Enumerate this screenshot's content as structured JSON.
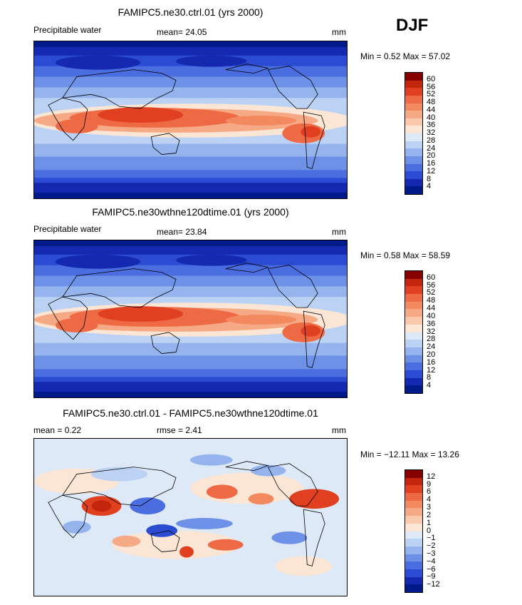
{
  "season": "DJF",
  "panels": [
    {
      "title": "FAMIPC5.ne30.ctrl.01 (yrs 2000)",
      "left_label": "Precipitable water",
      "stat1": "mean=   24.05",
      "unit": "mm",
      "minmax": "Min =    0.52  Max =   57.02"
    },
    {
      "title": "FAMIPC5.ne30wthne120dtime.01 (yrs 2000)",
      "left_label": "Precipitable water",
      "stat1": "mean=   23.84",
      "unit": "mm",
      "minmax": "Min =    0.58  Max =   58.59"
    },
    {
      "title": "FAMIPC5.ne30.ctrl.01 - FAMIPC5.ne30wthne120dtime.01",
      "left_label": "mean =    0.22",
      "stat1": "rmse =    2.41",
      "unit": "mm",
      "minmax": "Min = −12.11  Max =   13.26"
    }
  ],
  "colorbar_abs": {
    "labels": [
      "60",
      "56",
      "52",
      "48",
      "44",
      "40",
      "36",
      "32",
      "28",
      "24",
      "20",
      "16",
      "12",
      "8",
      "4"
    ],
    "colors": [
      "#870000",
      "#c4250d",
      "#e0401f",
      "#ee6a45",
      "#f2895f",
      "#f6a985",
      "#fac9ac",
      "#fbe6d6",
      "#dde9f7",
      "#bcd2f4",
      "#95b4ee",
      "#6d91e6",
      "#4a6ee0",
      "#2b4bd2",
      "#1428b0",
      "#001a8a"
    ]
  },
  "colorbar_diff": {
    "labels": [
      "12",
      "9",
      "6",
      "4",
      "3",
      "2",
      "1",
      "0",
      "−1",
      "−2",
      "−3",
      "−4",
      "−6",
      "−9",
      "−12"
    ],
    "colors": [
      "#870000",
      "#c4250d",
      "#e0401f",
      "#ee6a45",
      "#f2895f",
      "#f6a985",
      "#fac9ac",
      "#fbe6d6",
      "#dde9f7",
      "#bcd2f4",
      "#95b4ee",
      "#6d91e6",
      "#4a6ee0",
      "#2b4bd2",
      "#1428b0",
      "#001a8a"
    ]
  }
}
